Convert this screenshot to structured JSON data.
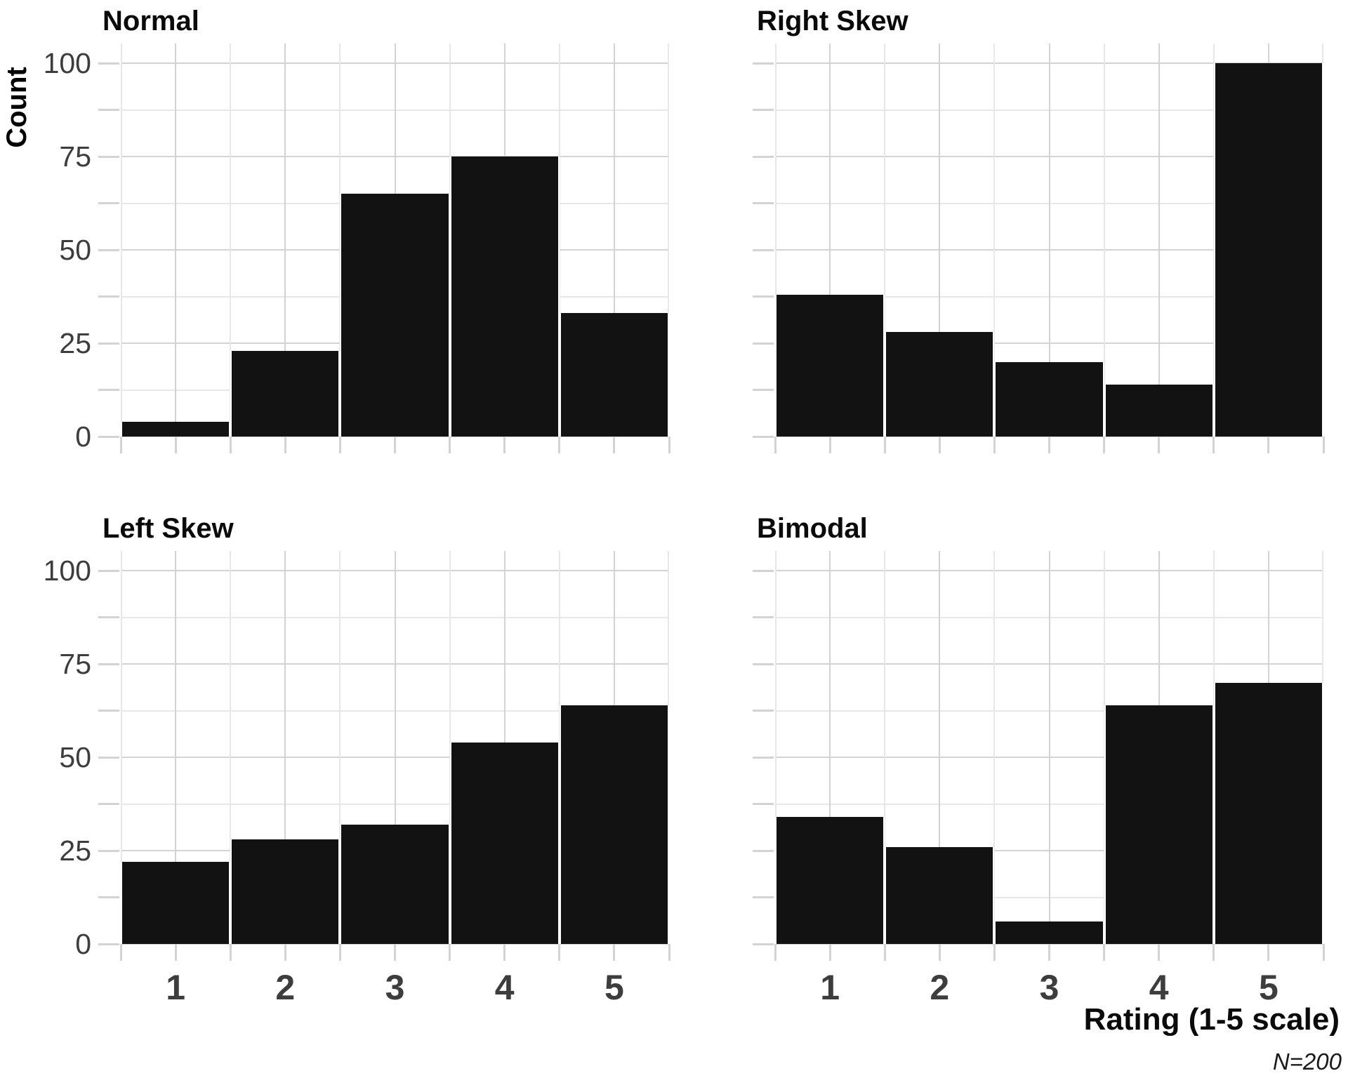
{
  "figure": {
    "ylabel": "Count",
    "xlabel": "Rating (1-5 scale)",
    "note": "N=200",
    "y_tick_labels": [
      "0",
      "25",
      "50",
      "75",
      "100"
    ],
    "x_tick_labels": [
      "1",
      "2",
      "3",
      "4",
      "5"
    ],
    "colors": {
      "bar": "#121212",
      "grid_major": "#d3d3d3",
      "grid_minor": "#e7e7e7",
      "tick_mark": "#d3d3d3",
      "tick_label": "#3d3d3d",
      "title": "#0a0a0a",
      "background": "#ffffff"
    }
  },
  "chart_data": [
    {
      "type": "bar",
      "title": "Normal",
      "categories": [
        1,
        2,
        3,
        4,
        5
      ],
      "values": [
        4,
        23,
        65,
        75,
        33
      ],
      "xlabel": "Rating (1-5 scale)",
      "ylabel": "Count",
      "ylim": [
        0,
        105
      ],
      "y_ticks": [
        0,
        25,
        50,
        75,
        100
      ],
      "grid": true,
      "legend": "none"
    },
    {
      "type": "bar",
      "title": "Right Skew",
      "categories": [
        1,
        2,
        3,
        4,
        5
      ],
      "values": [
        38,
        28,
        20,
        14,
        100
      ],
      "xlabel": "Rating (1-5 scale)",
      "ylabel": "Count",
      "ylim": [
        0,
        105
      ],
      "y_ticks": [
        0,
        25,
        50,
        75,
        100
      ],
      "grid": true,
      "legend": "none"
    },
    {
      "type": "bar",
      "title": "Left Skew",
      "categories": [
        1,
        2,
        3,
        4,
        5
      ],
      "values": [
        22,
        28,
        32,
        54,
        64
      ],
      "xlabel": "Rating (1-5 scale)",
      "ylabel": "Count",
      "ylim": [
        0,
        105
      ],
      "y_ticks": [
        0,
        25,
        50,
        75,
        100
      ],
      "grid": true,
      "legend": "none"
    },
    {
      "type": "bar",
      "title": "Bimodal",
      "categories": [
        1,
        2,
        3,
        4,
        5
      ],
      "values": [
        34,
        26,
        6,
        64,
        70
      ],
      "xlabel": "Rating (1-5 scale)",
      "ylabel": "Count",
      "ylim": [
        0,
        105
      ],
      "y_ticks": [
        0,
        25,
        50,
        75,
        100
      ],
      "grid": true,
      "legend": "none"
    }
  ]
}
